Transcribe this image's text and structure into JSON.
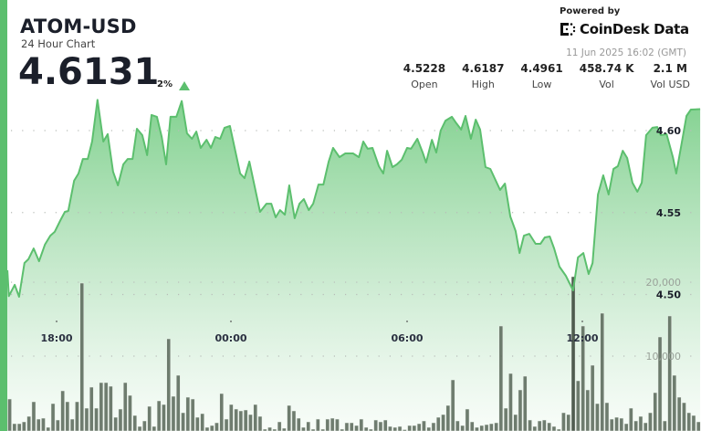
{
  "header": {
    "symbol": "ATOM-USD",
    "subtitle": "24 Hour Chart",
    "price": "4.6131",
    "change": "2%",
    "change_direction": "up"
  },
  "branding": {
    "powered_by": "Powered by",
    "brand": "CoinDesk Data",
    "timestamp": "11 Jun 2025 16:02 (GMT)"
  },
  "stats": [
    {
      "value": "4.5228",
      "label": "Open"
    },
    {
      "value": "4.6187",
      "label": "High"
    },
    {
      "value": "4.4961",
      "label": "Low"
    },
    {
      "value": "458.74 K",
      "label": "Vol"
    },
    {
      "value": "2.1 M",
      "label": "Vol USD"
    }
  ],
  "colors": {
    "accent": "#5cbf6e",
    "line": "#5cbf6e",
    "fill_top": "#7ccf8a",
    "bars": "#5f6e5f"
  },
  "chart_data": {
    "type": "area",
    "grid": true,
    "x_ticks": [
      "18:00",
      "00:00",
      "06:00",
      "12:00"
    ],
    "price_ticks": [
      {
        "value": 4.6,
        "label": "4.60"
      },
      {
        "value": 4.55,
        "label": "4.55"
      },
      {
        "value": 4.5,
        "label": "4.50"
      }
    ],
    "volume_ticks": [
      {
        "value": 20000,
        "label": "20,000"
      },
      {
        "value": 10000,
        "label": "10,000"
      }
    ],
    "price_series": [
      [
        "16:19",
        4.5148
      ],
      [
        "16:22",
        4.499
      ],
      [
        "16:34",
        4.5059
      ],
      [
        "16:43",
        4.4986
      ],
      [
        "16:54",
        4.5192
      ],
      [
        "17:02",
        4.5215
      ],
      [
        "17:13",
        4.5281
      ],
      [
        "17:24",
        4.5203
      ],
      [
        "17:36",
        4.5304
      ],
      [
        "17:47",
        4.5359
      ],
      [
        "17:56",
        4.5382
      ],
      [
        "18:08",
        4.5454
      ],
      [
        "18:17",
        4.5504
      ],
      [
        "18:24",
        4.551
      ],
      [
        "18:36",
        4.5694
      ],
      [
        "18:45",
        4.5738
      ],
      [
        "18:54",
        4.5827
      ],
      [
        "19:04",
        4.5827
      ],
      [
        "19:13",
        4.5933
      ],
      [
        "19:24",
        4.6187
      ],
      [
        "19:36",
        4.5933
      ],
      [
        "19:45",
        4.5978
      ],
      [
        "19:56",
        4.5749
      ],
      [
        "20:06",
        4.5666
      ],
      [
        "20:17",
        4.5794
      ],
      [
        "20:26",
        4.5827
      ],
      [
        "20:36",
        4.5827
      ],
      [
        "20:45",
        4.6011
      ],
      [
        "20:56",
        4.5972
      ],
      [
        "21:06",
        4.585
      ],
      [
        "21:15",
        4.6095
      ],
      [
        "21:26",
        4.6084
      ],
      [
        "21:36",
        4.5961
      ],
      [
        "21:45",
        4.5794
      ],
      [
        "21:54",
        4.6084
      ],
      [
        "22:06",
        4.6084
      ],
      [
        "22:17",
        4.618
      ],
      [
        "22:28",
        4.5983
      ],
      [
        "22:38",
        4.595
      ],
      [
        "22:47",
        4.5994
      ],
      [
        "22:56",
        4.5894
      ],
      [
        "23:08",
        4.5944
      ],
      [
        "23:17",
        4.5894
      ],
      [
        "23:26",
        4.5961
      ],
      [
        "23:36",
        4.595
      ],
      [
        "23:45",
        4.6017
      ],
      [
        "23:56",
        4.6028
      ],
      [
        "00:17",
        4.5738
      ],
      [
        "00:26",
        4.571
      ],
      [
        "00:36",
        4.5811
      ],
      [
        "00:58",
        4.5504
      ],
      [
        "01:11",
        4.5554
      ],
      [
        "01:21",
        4.5554
      ],
      [
        "01:30",
        4.5471
      ],
      [
        "01:39",
        4.5515
      ],
      [
        "01:49",
        4.5487
      ],
      [
        "01:58",
        4.5666
      ],
      [
        "02:09",
        4.5465
      ],
      [
        "02:19",
        4.5554
      ],
      [
        "02:28",
        4.5582
      ],
      [
        "02:38",
        4.5515
      ],
      [
        "02:47",
        4.5554
      ],
      [
        "02:58",
        4.5671
      ],
      [
        "03:08",
        4.5671
      ],
      [
        "03:19",
        4.5811
      ],
      [
        "03:28",
        4.5894
      ],
      [
        "03:41",
        4.5838
      ],
      [
        "03:53",
        4.5861
      ],
      [
        "04:09",
        4.5861
      ],
      [
        "04:21",
        4.5838
      ],
      [
        "04:30",
        4.5933
      ],
      [
        "04:39",
        4.5889
      ],
      [
        "04:49",
        4.5894
      ],
      [
        "05:02",
        4.5783
      ],
      [
        "05:11",
        4.5738
      ],
      [
        "05:19",
        4.5877
      ],
      [
        "05:30",
        4.5777
      ],
      [
        "05:39",
        4.5794
      ],
      [
        "05:49",
        4.5822
      ],
      [
        "06:00",
        4.5894
      ],
      [
        "06:08",
        4.5889
      ],
      [
        "06:21",
        4.595
      ],
      [
        "06:32",
        4.5866
      ],
      [
        "06:39",
        4.5805
      ],
      [
        "06:51",
        4.5944
      ],
      [
        "07:00",
        4.5866
      ],
      [
        "07:09",
        4.6
      ],
      [
        "07:19",
        4.6061
      ],
      [
        "07:32",
        4.6084
      ],
      [
        "07:41",
        4.6045
      ],
      [
        "07:51",
        4.6006
      ],
      [
        "08:00",
        4.6089
      ],
      [
        "08:11",
        4.595
      ],
      [
        "08:21",
        4.6067
      ],
      [
        "08:30",
        4.6006
      ],
      [
        "08:41",
        4.5777
      ],
      [
        "08:51",
        4.5766
      ],
      [
        "09:11",
        4.5638
      ],
      [
        "09:21",
        4.5677
      ],
      [
        "09:32",
        4.5476
      ],
      [
        "09:43",
        4.5387
      ],
      [
        "09:51",
        4.5253
      ],
      [
        "10:00",
        4.5359
      ],
      [
        "10:11",
        4.537
      ],
      [
        "10:24",
        4.5309
      ],
      [
        "10:34",
        4.5309
      ],
      [
        "10:43",
        4.5348
      ],
      [
        "10:53",
        4.5354
      ],
      [
        "11:02",
        4.5281
      ],
      [
        "11:13",
        4.517
      ],
      [
        "11:26",
        4.5114
      ],
      [
        "11:41",
        4.5025
      ],
      [
        "11:51",
        4.5226
      ],
      [
        "12:02",
        4.5253
      ],
      [
        "12:13",
        4.5125
      ],
      [
        "12:21",
        4.5192
      ],
      [
        "12:32",
        4.561
      ],
      [
        "12:43",
        4.5727
      ],
      [
        "12:54",
        4.561
      ],
      [
        "13:04",
        4.5766
      ],
      [
        "13:13",
        4.5783
      ],
      [
        "13:23",
        4.5877
      ],
      [
        "13:32",
        4.5833
      ],
      [
        "13:43",
        4.5682
      ],
      [
        "13:53",
        4.5627
      ],
      [
        "14:02",
        4.5682
      ],
      [
        "14:11",
        4.5972
      ],
      [
        "14:24",
        4.6017
      ],
      [
        "14:34",
        4.6022
      ],
      [
        "14:41",
        4.5972
      ],
      [
        "14:53",
        4.5978
      ],
      [
        "15:06",
        4.5838
      ],
      [
        "15:13",
        4.5738
      ],
      [
        "15:24",
        4.5922
      ],
      [
        "15:34",
        4.6089
      ],
      [
        "15:43",
        4.6128
      ],
      [
        "16:02",
        4.6131
      ]
    ],
    "volume_series": [
      4200,
      860,
      860,
      1110,
      1850,
      3830,
      1480,
      1610,
      370,
      3580,
      1360,
      5310,
      3830,
      1480,
      3830,
      19880,
      2960,
      5800,
      2960,
      6420,
      6420,
      5930,
      1730,
      2840,
      6420,
      4690,
      1980,
      490,
      1240,
      3210,
      490,
      3950,
      3460,
      12350,
      4570,
      7410,
      2350,
      4450,
      4200,
      1730,
      2220,
      370,
      620,
      990,
      4940,
      1480,
      3460,
      2840,
      2590,
      2720,
      2100,
      3460,
      1850,
      120,
      370,
      120,
      1110,
      250,
      3330,
      2590,
      1610,
      370,
      1110,
      120,
      1480,
      120,
      1480,
      1610,
      1480,
      120,
      990,
      990,
      620,
      1480,
      370,
      120,
      1360,
      1110,
      1360,
      490,
      370,
      490,
      60,
      620,
      620,
      860,
      1240,
      370,
      990,
      1730,
      2100,
      3330,
      6790,
      1240,
      620,
      2840,
      1110,
      370,
      620,
      740,
      860,
      990,
      14080,
      2960,
      7660,
      2100,
      5430,
      7290,
      1360,
      490,
      1240,
      1360,
      990,
      490,
      120,
      2350,
      2100,
      20750,
      6670,
      14080,
      5430,
      8770,
      3580,
      15810,
      3700,
      1480,
      1730,
      1610,
      860,
      2960,
      1240,
      1850,
      990,
      2350,
      5060,
      12600,
      1240,
      15440,
      7410,
      4450,
      3700,
      2350,
      1980,
      1110
    ]
  }
}
